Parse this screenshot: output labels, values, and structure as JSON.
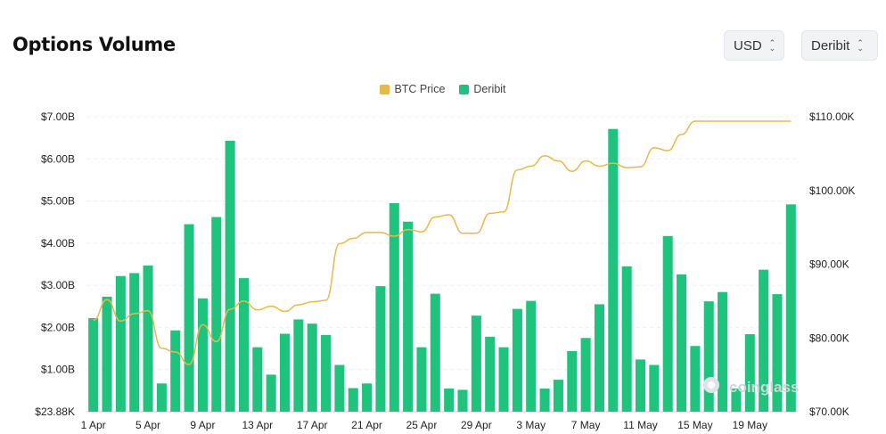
{
  "header": {
    "title": "Options Volume"
  },
  "controls": {
    "currency": {
      "value": "USD"
    },
    "exchange": {
      "value": "Deribit"
    }
  },
  "legend": [
    {
      "label": "BTC Price",
      "color": "#e8b84a"
    },
    {
      "label": "Deribit",
      "color": "#1ec47d"
    }
  ],
  "watermark": "coinglass",
  "chart_data": {
    "type": "bar",
    "x": [
      "1 Apr",
      "2 Apr",
      "3 Apr",
      "4 Apr",
      "5 Apr",
      "6 Apr",
      "7 Apr",
      "8 Apr",
      "9 Apr",
      "10 Apr",
      "11 Apr",
      "12 Apr",
      "13 Apr",
      "14 Apr",
      "15 Apr",
      "16 Apr",
      "17 Apr",
      "18 Apr",
      "19 Apr",
      "20 Apr",
      "21 Apr",
      "22 Apr",
      "23 Apr",
      "24 Apr",
      "25 Apr",
      "26 Apr",
      "27 Apr",
      "28 Apr",
      "29 Apr",
      "30 Apr",
      "1 May",
      "2 May",
      "3 May",
      "4 May",
      "5 May",
      "6 May",
      "7 May",
      "8 May",
      "9 May",
      "10 May",
      "11 May",
      "12 May",
      "13 May",
      "14 May",
      "15 May",
      "16 May",
      "17 May",
      "18 May",
      "19 May",
      "20 May",
      "21 May",
      "22 May"
    ],
    "x_ticks": [
      "1 Apr",
      "5 Apr",
      "9 Apr",
      "13 Apr",
      "17 Apr",
      "21 Apr",
      "25 Apr",
      "29 Apr",
      "3 May",
      "7 May",
      "11 May",
      "15 May",
      "19 May"
    ],
    "series": [
      {
        "name": "Deribit",
        "axis": "left",
        "color": "#1ec47d",
        "values": [
          2.22,
          2.73,
          3.22,
          3.29,
          3.47,
          0.67,
          1.93,
          4.45,
          2.69,
          4.62,
          6.43,
          3.17,
          1.53,
          0.88,
          1.85,
          2.19,
          2.09,
          1.82,
          1.11,
          0.56,
          0.67,
          2.98,
          4.95,
          4.51,
          1.53,
          2.8,
          0.55,
          0.52,
          2.28,
          1.78,
          1.53,
          2.44,
          2.63,
          0.55,
          0.76,
          1.44,
          1.75,
          2.55,
          6.71,
          3.45,
          1.24,
          1.11,
          4.17,
          3.26,
          1.56,
          2.62,
          2.84,
          0.55,
          1.84,
          3.37,
          2.79,
          4.92
        ]
      },
      {
        "name": "BTC Price",
        "axis": "right",
        "color": "#e8b84a",
        "values": [
          82400,
          85200,
          82300,
          83300,
          83700,
          78600,
          78100,
          76400,
          81800,
          79500,
          83900,
          85000,
          83800,
          84300,
          83600,
          84500,
          84900,
          85100,
          92800,
          93500,
          94300,
          94300,
          93800,
          94700,
          94400,
          96400,
          96700,
          94200,
          94200,
          96900,
          97100,
          102800,
          103300,
          104700,
          104000,
          102600,
          104000,
          103300,
          103700,
          103100,
          103200,
          105800,
          105400,
          107600,
          109400,
          109400,
          109400,
          109400,
          109400,
          109400,
          109400,
          109400
        ]
      }
    ],
    "y_left": {
      "ticks": [
        "$23.88K",
        "$1.00B",
        "$2.00B",
        "$3.00B",
        "$4.00B",
        "$5.00B",
        "$6.00B",
        "$7.00B"
      ],
      "range": [
        0,
        7.0
      ]
    },
    "y_right": {
      "ticks": [
        "$70.00K",
        "$80.00K",
        "$90.00K",
        "$100.00K",
        "$110.00K"
      ],
      "range": [
        70000,
        110000
      ]
    },
    "grid": true,
    "legend_position": "top-center"
  }
}
